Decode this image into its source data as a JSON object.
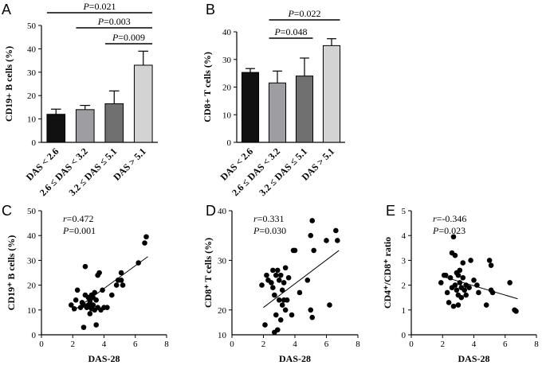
{
  "chart_data": [
    {
      "id": "A",
      "panel_letter": "A",
      "type": "bar",
      "ylabel": "CD19+ B cells (%)",
      "ylim": [
        0,
        50
      ],
      "yticks": [
        0,
        10,
        20,
        30,
        40,
        50
      ],
      "categories": [
        "DAS < 2.6",
        "2.6 ≤ DAS < 3.2",
        "3.2 ≤ DAS ≤ 5.1",
        "DAS > 5.1"
      ],
      "values": [
        12,
        14,
        16.5,
        33
      ],
      "errors": [
        2.2,
        1.8,
        5.5,
        6
      ],
      "colors": [
        "#111111",
        "#9e9ea2",
        "#707070",
        "#d3d3d3"
      ],
      "comparisons": [
        {
          "from": 0,
          "to": 3,
          "p_italic": "P",
          "p_value": "=0.021"
        },
        {
          "from": 1,
          "to": 3,
          "p_italic": "P",
          "p_value": "=0.003"
        },
        {
          "from": 2,
          "to": 3,
          "p_italic": "P",
          "p_value": "=0.009"
        }
      ]
    },
    {
      "id": "B",
      "panel_letter": "B",
      "type": "bar",
      "ylabel": "CD8+ T cells (%)",
      "ylim": [
        0,
        40
      ],
      "yticks": [
        0,
        10,
        20,
        30,
        40
      ],
      "categories": [
        "DAS < 2.6",
        "2.6 ≤ DAS < 3.2",
        "3.2 ≤ DAS ≤ 5.1",
        "DAS > 5.1"
      ],
      "values": [
        25.3,
        21.5,
        24,
        35
      ],
      "errors": [
        1.4,
        4.3,
        6.5,
        2.5
      ],
      "colors": [
        "#111111",
        "#9e9ea2",
        "#707070",
        "#d3d3d3"
      ],
      "comparisons": [
        {
          "from": 1,
          "to": 2,
          "p_italic": "P",
          "p_value": "=0.048"
        },
        {
          "from": 1,
          "to": 3,
          "p_italic": "P",
          "p_value": "=0.022"
        }
      ]
    },
    {
      "id": "C",
      "panel_letter": "C",
      "type": "scatter",
      "ylabel": "CD19⁺ B cells (%)",
      "xlabel": "DAS-28",
      "xlim": [
        0,
        8
      ],
      "ylim": [
        0,
        50
      ],
      "xticks": [
        0,
        2,
        4,
        6,
        8
      ],
      "yticks": [
        0,
        10,
        20,
        30,
        40,
        50
      ],
      "r_label": "r",
      "r_value": "=0.472",
      "p_label": "P",
      "p_value": "=0.001",
      "fit": {
        "x": [
          2.0,
          6.8
        ],
        "y": [
          9.5,
          31.5
        ]
      },
      "points": [
        [
          1.9,
          12
        ],
        [
          2.1,
          10.5
        ],
        [
          2.2,
          14
        ],
        [
          2.3,
          18
        ],
        [
          2.5,
          11
        ],
        [
          2.6,
          13
        ],
        [
          2.7,
          12
        ],
        [
          2.7,
          3
        ],
        [
          2.8,
          27.5
        ],
        [
          2.8,
          16
        ],
        [
          2.9,
          11
        ],
        [
          3.0,
          15
        ],
        [
          3.0,
          12
        ],
        [
          3.1,
          13.5
        ],
        [
          3.1,
          8.5
        ],
        [
          3.2,
          10.5
        ],
        [
          3.2,
          16
        ],
        [
          3.3,
          12
        ],
        [
          3.3,
          15
        ],
        [
          3.4,
          17
        ],
        [
          3.4,
          10
        ],
        [
          3.5,
          14
        ],
        [
          3.5,
          4
        ],
        [
          3.6,
          24
        ],
        [
          3.6,
          11
        ],
        [
          3.7,
          25
        ],
        [
          3.8,
          10
        ],
        [
          3.9,
          18
        ],
        [
          4.0,
          11
        ],
        [
          4.2,
          11
        ],
        [
          4.5,
          16
        ],
        [
          4.8,
          20
        ],
        [
          4.9,
          22
        ],
        [
          5.1,
          22
        ],
        [
          5.1,
          25
        ],
        [
          5.2,
          20
        ],
        [
          6.2,
          29
        ],
        [
          6.6,
          37
        ],
        [
          6.7,
          39.5
        ]
      ]
    },
    {
      "id": "D",
      "panel_letter": "D",
      "type": "scatter",
      "ylabel": "CD8⁺ T cells (%)",
      "xlabel": "DAS-28",
      "xlim": [
        0,
        8
      ],
      "ylim": [
        15,
        40
      ],
      "xticks": [
        0,
        2,
        4,
        6,
        8
      ],
      "yticks": [
        20,
        30,
        40
      ],
      "y_origin_label": "10",
      "r_label": "r",
      "r_value": "=0.331",
      "p_label": "P",
      "p_value": "=0.030",
      "fit": {
        "x": [
          2.0,
          6.8
        ],
        "y": [
          20.5,
          32
        ]
      },
      "points": [
        [
          1.9,
          25
        ],
        [
          2.1,
          17
        ],
        [
          2.2,
          27
        ],
        [
          2.3,
          26
        ],
        [
          2.5,
          25.5
        ],
        [
          2.6,
          28
        ],
        [
          2.6,
          24.5
        ],
        [
          2.7,
          23
        ],
        [
          2.7,
          15.5
        ],
        [
          2.8,
          27
        ],
        [
          2.8,
          19
        ],
        [
          2.9,
          28
        ],
        [
          2.9,
          16
        ],
        [
          3.0,
          26
        ],
        [
          3.0,
          22
        ],
        [
          3.1,
          27
        ],
        [
          3.1,
          18
        ],
        [
          3.2,
          24
        ],
        [
          3.2,
          21
        ],
        [
          3.3,
          25.5
        ],
        [
          3.3,
          22
        ],
        [
          3.4,
          28.5
        ],
        [
          3.4,
          20
        ],
        [
          3.5,
          22
        ],
        [
          3.6,
          26.5
        ],
        [
          3.8,
          19
        ],
        [
          3.9,
          32
        ],
        [
          4.0,
          32
        ],
        [
          4.3,
          23.5
        ],
        [
          4.8,
          26
        ],
        [
          5.0,
          35
        ],
        [
          5.0,
          20
        ],
        [
          5.1,
          38
        ],
        [
          5.1,
          18.5
        ],
        [
          5.2,
          32
        ],
        [
          6.0,
          34
        ],
        [
          6.2,
          21
        ],
        [
          6.6,
          36
        ],
        [
          6.7,
          34
        ]
      ]
    },
    {
      "id": "E",
      "panel_letter": "E",
      "type": "scatter",
      "ylabel": "CD4⁺/CD8⁺ ratio",
      "xlabel": "DAS-28",
      "xlim": [
        0,
        8
      ],
      "ylim": [
        0,
        5
      ],
      "xticks": [
        0,
        2,
        4,
        6,
        8
      ],
      "yticks": [
        0,
        1,
        2,
        3,
        4,
        5
      ],
      "r_label": "r",
      "r_value": "=-0.346",
      "p_label": "P",
      "p_value": "=0.023",
      "fit": {
        "x": [
          2.0,
          6.8
        ],
        "y": [
          2.35,
          1.45
        ]
      },
      "points": [
        [
          1.9,
          2.1
        ],
        [
          2.1,
          2.4
        ],
        [
          2.2,
          2.4
        ],
        [
          2.3,
          1.7
        ],
        [
          2.4,
          1.3
        ],
        [
          2.5,
          2.3
        ],
        [
          2.6,
          3.3
        ],
        [
          2.6,
          1.9
        ],
        [
          2.7,
          3.95
        ],
        [
          2.7,
          1.15
        ],
        [
          2.8,
          3.2
        ],
        [
          2.8,
          2.0
        ],
        [
          2.9,
          2.5
        ],
        [
          2.9,
          1.8
        ],
        [
          3.0,
          2.4
        ],
        [
          3.0,
          1.6
        ],
        [
          3.0,
          1.2
        ],
        [
          3.1,
          2.6
        ],
        [
          3.1,
          2.1
        ],
        [
          3.2,
          1.9
        ],
        [
          3.2,
          1.5
        ],
        [
          3.3,
          2.9
        ],
        [
          3.3,
          2.3
        ],
        [
          3.4,
          1.8
        ],
        [
          3.5,
          1.6
        ],
        [
          3.5,
          2.0
        ],
        [
          3.7,
          1.9
        ],
        [
          3.8,
          3.0
        ],
        [
          4.0,
          2.2
        ],
        [
          4.2,
          2.0
        ],
        [
          4.3,
          1.7
        ],
        [
          4.8,
          1.2
        ],
        [
          5.0,
          3.0
        ],
        [
          5.1,
          2.8
        ],
        [
          5.1,
          1.8
        ],
        [
          5.2,
          1.7
        ],
        [
          6.3,
          2.1
        ],
        [
          6.6,
          1.0
        ],
        [
          6.7,
          0.95
        ]
      ]
    }
  ]
}
